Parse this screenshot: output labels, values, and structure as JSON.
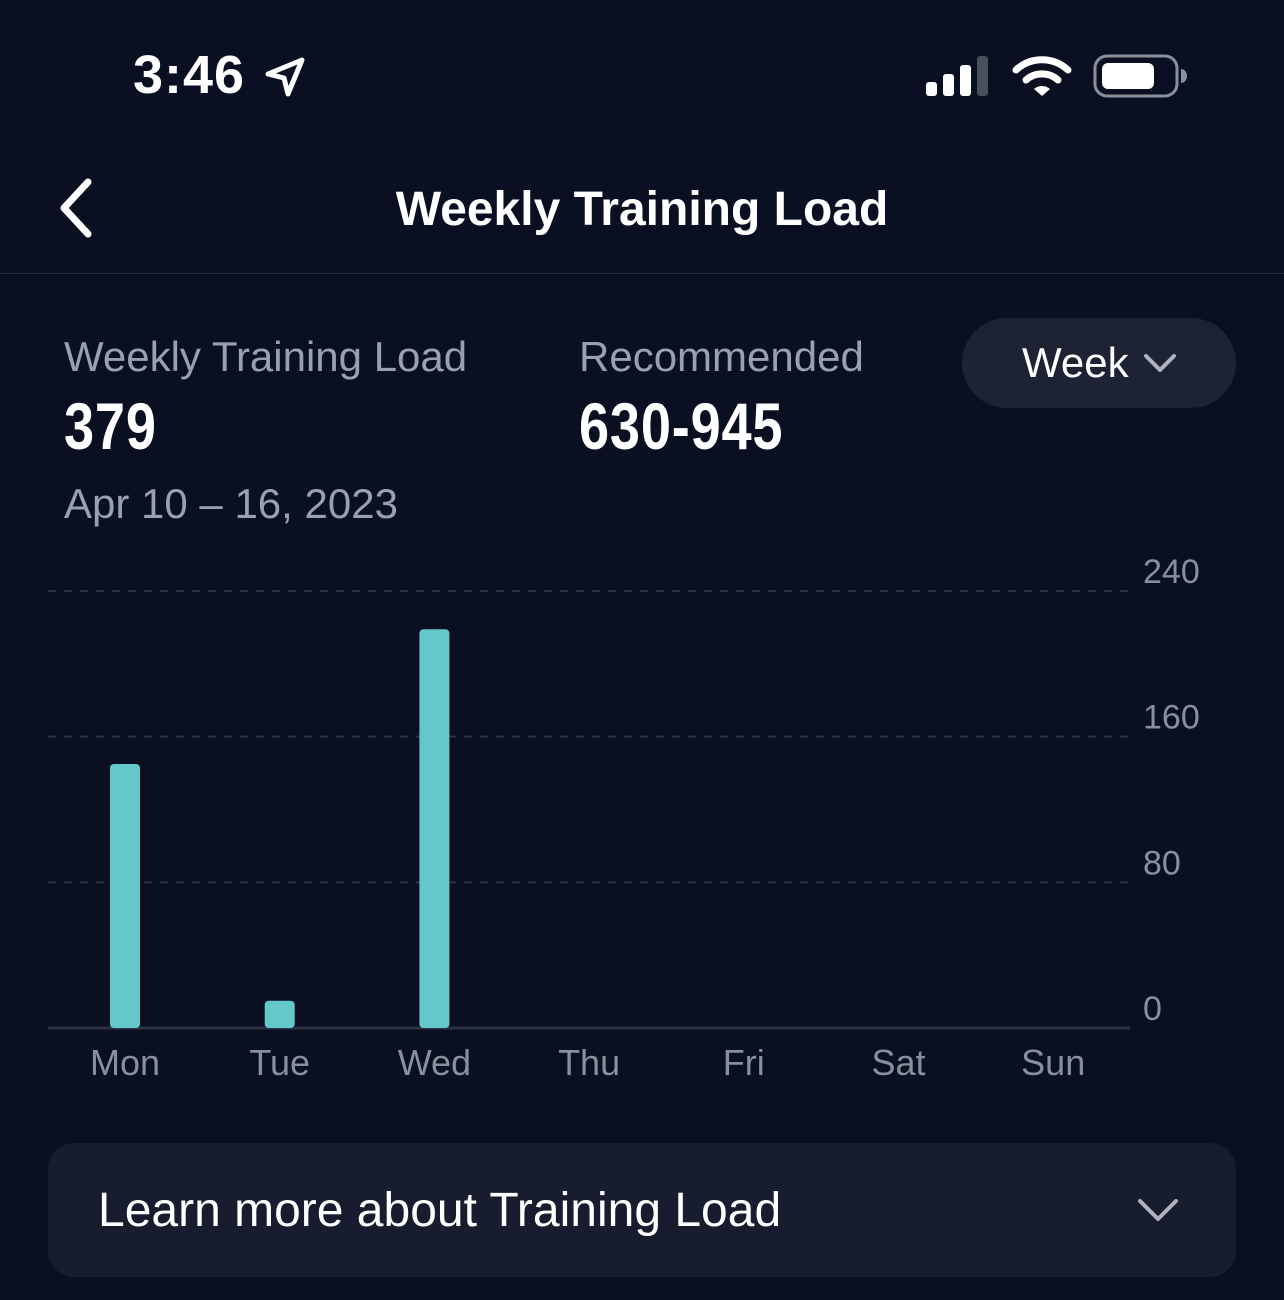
{
  "status_bar": {
    "time": "3:46",
    "icons": [
      "location-arrow-icon",
      "signal-icon",
      "wifi-icon",
      "battery-icon"
    ]
  },
  "nav": {
    "back_icon": "chevron-left-icon",
    "title": "Weekly Training Load"
  },
  "summary": {
    "load_label": "Weekly Training Load",
    "load_value": "379",
    "recommended_label": "Recommended",
    "recommended_value": "630-945",
    "date_range": "Apr 10 – 16, 2023"
  },
  "period_select": {
    "value": "Week",
    "icon": "chevron-down-icon"
  },
  "chart_data": {
    "type": "bar",
    "categories": [
      "Mon",
      "Tue",
      "Wed",
      "Thu",
      "Fri",
      "Sat",
      "Sun"
    ],
    "values": [
      145,
      15,
      219,
      0,
      0,
      0,
      0
    ],
    "ylim": [
      0,
      240
    ],
    "yticks": [
      0,
      80,
      160,
      240
    ],
    "ytick_labels": [
      "0",
      "80",
      "160",
      "240"
    ],
    "grid": true,
    "bar_color": "#64c7c9"
  },
  "learn_more": {
    "label": "Learn more about Training Load",
    "icon": "chevron-down-icon"
  },
  "colors": {
    "background": "#0a0f22",
    "card": "#171c2e",
    "pill": "#1d2234",
    "accent": "#64c7c9",
    "muted_text": "#9ba0ae"
  }
}
